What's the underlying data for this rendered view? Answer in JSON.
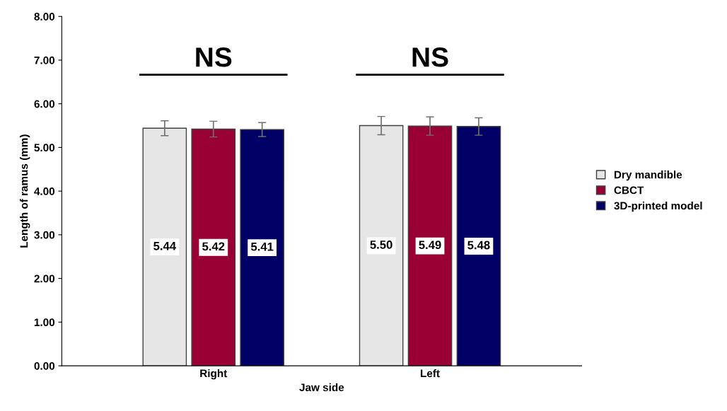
{
  "chart_data": {
    "type": "bar",
    "xlabel": "Jaw side",
    "ylabel": "Length of ramus (mm)",
    "categories": [
      "Right",
      "Left"
    ],
    "series": [
      {
        "name": "Dry mandible",
        "color": "#e6e6e6",
        "values": [
          5.44,
          5.5
        ],
        "errors": [
          0.17,
          0.21
        ],
        "value_labels": [
          "5.44",
          "5.50"
        ]
      },
      {
        "name": "CBCT",
        "color": "#990033",
        "values": [
          5.42,
          5.49
        ],
        "errors": [
          0.18,
          0.21
        ],
        "value_labels": [
          "5.42",
          "5.49"
        ]
      },
      {
        "name": "3D-printed model",
        "color": "#000066",
        "values": [
          5.41,
          5.48
        ],
        "errors": [
          0.16,
          0.2
        ],
        "value_labels": [
          "5.41",
          "5.48"
        ]
      }
    ],
    "ylim": [
      0,
      8
    ],
    "yticks": [
      {
        "value": 0,
        "label": "0.00"
      },
      {
        "value": 1,
        "label": "1.00"
      },
      {
        "value": 2,
        "label": "2.00"
      },
      {
        "value": 3,
        "label": "3.00"
      },
      {
        "value": 4,
        "label": "4.00"
      },
      {
        "value": 5,
        "label": "5.00"
      },
      {
        "value": 6,
        "label": "6.00"
      },
      {
        "value": 7,
        "label": "7.00"
      },
      {
        "value": 8,
        "label": "8.00"
      }
    ],
    "annotations": [
      "NS",
      "NS"
    ],
    "grid": false,
    "legend": "right"
  }
}
